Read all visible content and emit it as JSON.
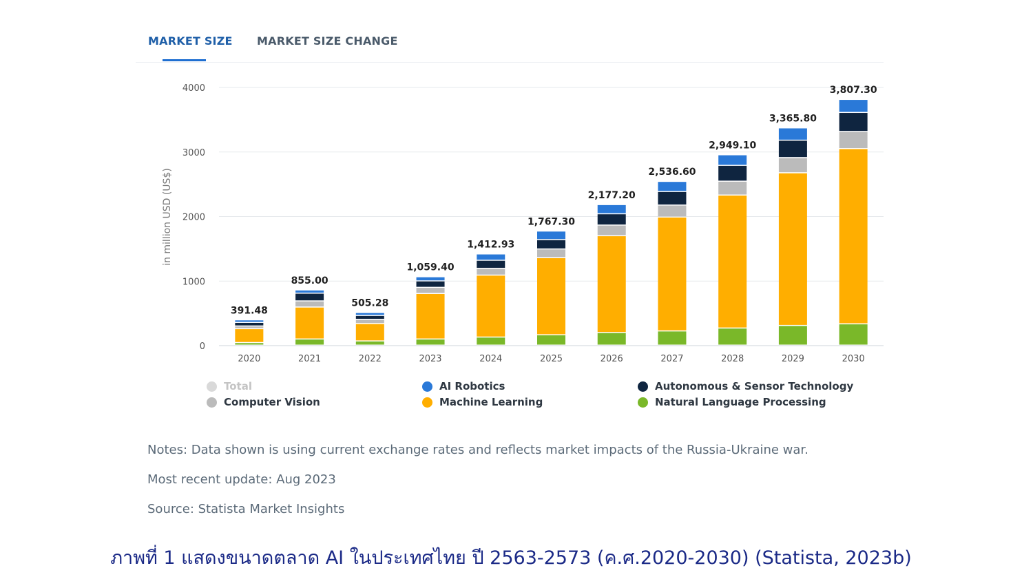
{
  "tabs": [
    {
      "label": "MARKET SIZE",
      "active": true
    },
    {
      "label": "MARKET SIZE CHANGE",
      "active": false
    }
  ],
  "chart_data": {
    "type": "bar",
    "stacked": true,
    "title": "",
    "xlabel": "",
    "ylabel": "in million USD (US$)",
    "ylim": [
      0,
      4000
    ],
    "yticks": [
      0,
      1000,
      2000,
      3000,
      4000
    ],
    "grid": true,
    "categories": [
      "2020",
      "2021",
      "2022",
      "2023",
      "2024",
      "2025",
      "2026",
      "2027",
      "2028",
      "2029",
      "2030"
    ],
    "totals": [
      391.48,
      855.0,
      505.28,
      1059.4,
      1412.93,
      1767.3,
      2177.2,
      2536.6,
      2949.1,
      3365.8,
      3807.3
    ],
    "total_labels": [
      "391.48",
      "855.00",
      "505.28",
      "1,059.40",
      "1,412.93",
      "1,767.30",
      "2,177.20",
      "2,536.60",
      "2,949.10",
      "3,365.80",
      "3,807.30"
    ],
    "series": [
      {
        "name": "Natural Language Processing",
        "color": "#7ab829",
        "values": [
          40,
          95,
          65,
          95,
          125,
          160,
          195,
          220,
          265,
          305,
          330
        ]
      },
      {
        "name": "Machine Learning",
        "color": "#ffae00",
        "values": [
          215,
          495,
          270,
          705,
          960,
          1195,
          1500,
          1765,
          2060,
          2365,
          2715
        ]
      },
      {
        "name": "Computer Vision",
        "color": "#bbbbbb",
        "values": [
          42,
          95,
          65,
          95,
          105,
          135,
          165,
          185,
          215,
          235,
          265
        ]
      },
      {
        "name": "Autonomous & Sensor Technology",
        "color": "#0f2540",
        "values": [
          55,
          120,
          60,
          100,
          125,
          145,
          175,
          210,
          245,
          270,
          295
        ]
      },
      {
        "name": "AI Robotics",
        "color": "#2a79d8",
        "values": [
          39.48,
          50,
          45.28,
          64.4,
          97.93,
          132.3,
          142.2,
          156.6,
          164.1,
          190.8,
          202.3
        ]
      }
    ],
    "legend": {
      "position": "bottom",
      "items": [
        {
          "name": "Total",
          "color": "#d9d9d9",
          "disabled": true
        },
        {
          "name": "AI Robotics",
          "color": "#2a79d8"
        },
        {
          "name": "Autonomous & Sensor Technology",
          "color": "#0f2540"
        },
        {
          "name": "Computer Vision",
          "color": "#bbbbbb"
        },
        {
          "name": "Machine Learning",
          "color": "#ffae00"
        },
        {
          "name": "Natural Language Processing",
          "color": "#7ab829"
        }
      ]
    }
  },
  "notes": {
    "note": "Notes: Data shown is using current exchange rates and reflects market impacts of the Russia-Ukraine war.",
    "update": "Most recent update: Aug 2023",
    "source": "Source: Statista Market Insights"
  },
  "caption": "ภาพที่ 1 แสดงขนาดตลาด AI ในประเทศไทย ปี 2563-2573 (ค.ศ.2020-2030) (Statista, 2023b)"
}
